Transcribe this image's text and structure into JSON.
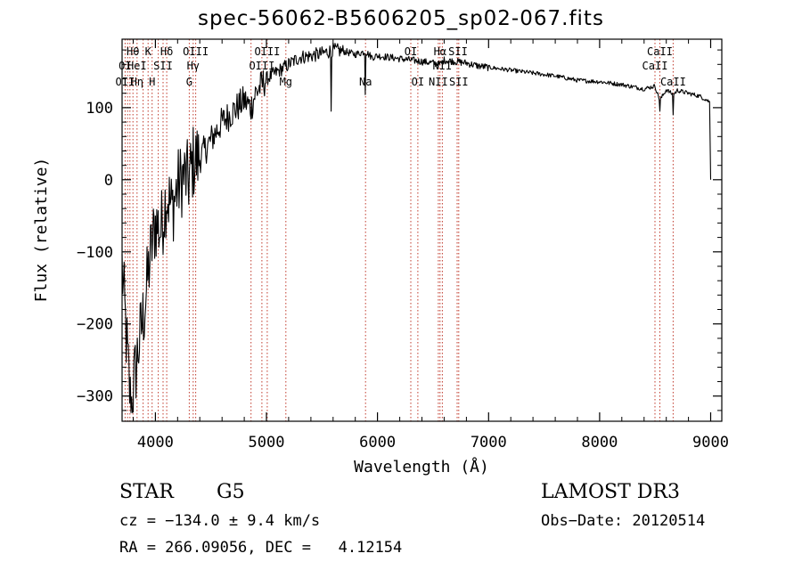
{
  "chart_data": {
    "type": "line",
    "title": "spec-56062-B5606205_sp02-067.fits",
    "xlabel": "Wavelength (Å)",
    "ylabel": "Flux (relative)",
    "xlim": [
      3700,
      9100
    ],
    "ylim": [
      -335,
      195
    ],
    "xticks": [
      4000,
      5000,
      6000,
      7000,
      8000,
      9000
    ],
    "xtick_labels": [
      "4000",
      "5000",
      "6000",
      "7000",
      "8000",
      "9000"
    ],
    "yticks": [
      100,
      0,
      -100,
      -200,
      -300
    ],
    "ytick_labels": [
      "100",
      "0",
      "−100",
      "−200",
      "−300"
    ],
    "spectrum": {
      "x": [
        3700,
        3750,
        3780,
        3800,
        3850,
        3900,
        3950,
        4000,
        4050,
        4100,
        4150,
        4200,
        4250,
        4300,
        4340,
        4400,
        4500,
        4600,
        4700,
        4800,
        4861,
        4900,
        5000,
        5100,
        5200,
        5300,
        5400,
        5500,
        5600,
        5700,
        5800,
        5890,
        5950,
        6000,
        6100,
        6200,
        6300,
        6400,
        6500,
        6563,
        6600,
        6700,
        6800,
        6900,
        7000,
        7200,
        7400,
        7600,
        7800,
        8000,
        8200,
        8400,
        8498,
        8542,
        8600,
        8662,
        8700,
        8800,
        8900,
        8950,
        8990,
        9000
      ],
      "y": [
        -120,
        -250,
        -320,
        -290,
        -230,
        -180,
        -110,
        -60,
        -70,
        -20,
        -40,
        -10,
        5,
        0,
        25,
        30,
        55,
        80,
        95,
        110,
        100,
        120,
        140,
        150,
        160,
        170,
        172,
        175,
        180,
        178,
        174,
        178,
        170,
        172,
        170,
        168,
        166,
        164,
        162,
        160,
        166,
        164,
        162,
        158,
        156,
        152,
        148,
        144,
        138,
        136,
        132,
        126,
        130,
        110,
        125,
        118,
        124,
        120,
        116,
        112,
        108,
        0
      ]
    },
    "dips": [
      {
        "x": 5583,
        "y": 95
      },
      {
        "x": 5891,
        "y": 118
      },
      {
        "x": 8542,
        "y": 95
      },
      {
        "x": 8662,
        "y": 90
      }
    ],
    "lines": [
      3727,
      3750,
      3771,
      3798,
      3835,
      3889,
      3934,
      3970,
      4026,
      4069,
      4102,
      4305,
      4340,
      4363,
      4861,
      4959,
      5007,
      5175,
      5892,
      6300,
      6363,
      6548,
      6563,
      6584,
      6717,
      6731,
      8498,
      8542,
      8662
    ],
    "line_labels": [
      {
        "text": "Hθ",
        "x": 3798,
        "row": 1
      },
      {
        "text": "K",
        "x": 3934,
        "row": 1
      },
      {
        "text": "Hδ",
        "x": 4102,
        "row": 1
      },
      {
        "text": "OIII",
        "x": 4363,
        "row": 1
      },
      {
        "text": "OIII",
        "x": 5007,
        "row": 1
      },
      {
        "text": "OI",
        "x": 6300,
        "row": 1
      },
      {
        "text": "Hα",
        "x": 6563,
        "row": 1
      },
      {
        "text": "SII",
        "x": 6725,
        "row": 1
      },
      {
        "text": "CaII",
        "x": 8542,
        "row": 1
      },
      {
        "text": "OI",
        "x": 3727,
        "row": 2
      },
      {
        "text": "HeI",
        "x": 3835,
        "row": 2
      },
      {
        "text": "SII",
        "x": 4069,
        "row": 2
      },
      {
        "text": "Hγ",
        "x": 4340,
        "row": 2
      },
      {
        "text": "OIII",
        "x": 4959,
        "row": 2
      },
      {
        "text": "NII",
        "x": 6584,
        "row": 2
      },
      {
        "text": "CaII",
        "x": 8498,
        "row": 2
      },
      {
        "text": "OII",
        "x": 3727,
        "row": 3
      },
      {
        "text": "Hη",
        "x": 3835,
        "row": 3
      },
      {
        "text": "H",
        "x": 3970,
        "row": 3
      },
      {
        "text": "G",
        "x": 4305,
        "row": 3
      },
      {
        "text": "Mg",
        "x": 5175,
        "row": 3
      },
      {
        "text": "Na",
        "x": 5892,
        "row": 3
      },
      {
        "text": "OI",
        "x": 6363,
        "row": 3
      },
      {
        "text": "NII",
        "x": 6548,
        "row": 3
      },
      {
        "text": "SII",
        "x": 6731,
        "row": 3
      },
      {
        "text": "CaII",
        "x": 8662,
        "row": 3
      }
    ]
  },
  "info": {
    "class": "STAR",
    "subclass": "G5",
    "survey": "LAMOST DR3",
    "cz": "cz = −134.0 ± 9.4 km/s",
    "obs_date": "Obs−Date: 20120514",
    "coords": "RA = 266.09056, DEC =   4.12154"
  },
  "colors": {
    "axis": "#000000",
    "spectrum": "#000000",
    "line_marker": "#c0392b"
  }
}
